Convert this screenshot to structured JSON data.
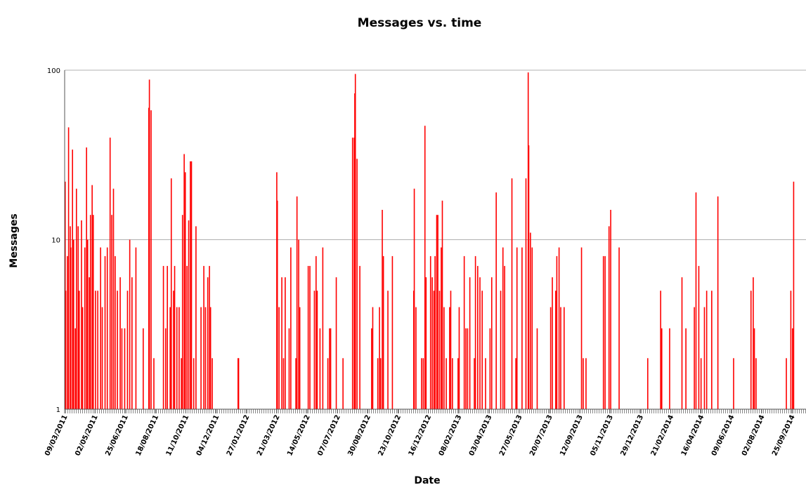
{
  "chart_data": {
    "type": "bar",
    "title": "Messages vs. time",
    "x_label": "Date",
    "y_label": "Messages",
    "color": "#ff0000",
    "y_log": true,
    "grid": true,
    "xlim": [
      "09/03/2011",
      "20/10/2014"
    ],
    "xticks": [
      "09/03/2011",
      "02/05/2011",
      "25/06/2011",
      "18/08/2011",
      "11/10/2011",
      "04/12/2011",
      "27/01/2012",
      "21/03/2012",
      "14/05/2012",
      "07/07/2012",
      "30/08/2012",
      "23/10/2012",
      "16/12/2012",
      "08/02/2013",
      "03/04/2013",
      "27/05/2013",
      "20/07/2013",
      "12/09/2013",
      "05/11/2013",
      "29/12/2013",
      "21/02/2014",
      "16/04/2014",
      "09/06/2014",
      "02/08/2014",
      "25/09/2014"
    ],
    "ylim": [
      1,
      100
    ],
    "yticks": [
      1,
      10,
      100
    ],
    "x": [
      "09/03/2011",
      "10/03/2011",
      "13/03/2011",
      "15/03/2011",
      "18/03/2011",
      "19/03/2011",
      "22/03/2011",
      "24/03/2011",
      "27/03/2011",
      "29/03/2011",
      "01/04/2011",
      "03/04/2011",
      "07/04/2011",
      "09/04/2011",
      "13/04/2011",
      "16/04/2011",
      "18/04/2011",
      "21/04/2011",
      "23/04/2011",
      "26/04/2011",
      "28/04/2011",
      "02/05/2011",
      "06/05/2011",
      "11/05/2011",
      "14/05/2011",
      "19/05/2011",
      "23/05/2011",
      "28/05/2011",
      "31/05/2011",
      "03/06/2011",
      "06/06/2011",
      "10/06/2011",
      "15/06/2011",
      "18/06/2011",
      "23/06/2011",
      "28/06/2011",
      "02/07/2011",
      "06/07/2011",
      "13/07/2011",
      "26/07/2011",
      "05/08/2011",
      "06/08/2011",
      "09/08/2011",
      "14/08/2011",
      "31/08/2011",
      "04/09/2011",
      "07/09/2011",
      "12/09/2011",
      "14/09/2011",
      "18/09/2011",
      "20/09/2011",
      "24/09/2011",
      "28/09/2011",
      "02/10/2011",
      "04/10/2011",
      "07/10/2011",
      "09/10/2011",
      "12/10/2011",
      "15/10/2011",
      "18/10/2011",
      "20/10/2011",
      "24/10/2011",
      "28/10/2011",
      "06/11/2011",
      "11/11/2011",
      "14/11/2011",
      "18/11/2011",
      "21/11/2011",
      "23/11/2011",
      "26/11/2011",
      "11/01/2012",
      "12/01/2012",
      "20/03/2012",
      "21/03/2012",
      "24/03/2012",
      "29/03/2012",
      "01/04/2012",
      "04/04/2012",
      "11/04/2012",
      "14/04/2012",
      "23/04/2012",
      "25/04/2012",
      "28/04/2012",
      "30/04/2012",
      "15/05/2012",
      "18/05/2012",
      "26/05/2012",
      "29/05/2012",
      "31/05/2012",
      "05/06/2012",
      "10/06/2012",
      "19/06/2012",
      "22/06/2012",
      "24/06/2012",
      "04/07/2012",
      "16/07/2012",
      "02/08/2012",
      "05/08/2012",
      "06/08/2012",
      "07/08/2012",
      "10/08/2012",
      "15/08/2012",
      "05/09/2012",
      "07/09/2012",
      "16/09/2012",
      "19/09/2012",
      "21/09/2012",
      "24/09/2012",
      "26/09/2012",
      "04/10/2012",
      "12/10/2012",
      "19/11/2012",
      "20/11/2012",
      "23/11/2012",
      "03/12/2012",
      "06/12/2012",
      "09/12/2012",
      "11/12/2012",
      "19/12/2012",
      "22/12/2012",
      "25/12/2012",
      "27/12/2012",
      "30/12/2012",
      "01/01/2013",
      "04/01/2013",
      "07/01/2013",
      "09/01/2013",
      "12/01/2013",
      "16/01/2013",
      "22/01/2013",
      "24/01/2013",
      "27/01/2013",
      "06/02/2013",
      "08/02/2013",
      "17/02/2013",
      "20/02/2013",
      "23/02/2013",
      "27/02/2013",
      "07/03/2013",
      "09/03/2013",
      "13/03/2013",
      "17/03/2013",
      "21/03/2013",
      "27/03/2013",
      "04/04/2013",
      "07/04/2013",
      "15/04/2013",
      "23/04/2013",
      "27/04/2013",
      "30/04/2013",
      "13/05/2013",
      "20/05/2013",
      "22/05/2013",
      "31/05/2013",
      "07/06/2013",
      "11/06/2013",
      "12/06/2013",
      "15/06/2013",
      "18/06/2013",
      "27/06/2013",
      "21/07/2013",
      "24/07/2013",
      "30/07/2013",
      "01/08/2013",
      "05/08/2013",
      "08/08/2013",
      "14/08/2013",
      "14/09/2013",
      "17/09/2013",
      "22/09/2013",
      "23/10/2013",
      "26/10/2013",
      "02/11/2013",
      "05/11/2013",
      "20/11/2013",
      "10/01/2014",
      "02/02/2014",
      "04/02/2014",
      "18/02/2014",
      "12/03/2014",
      "19/03/2014",
      "03/04/2014",
      "06/04/2014",
      "11/04/2014",
      "15/04/2014",
      "21/04/2014",
      "25/04/2014",
      "04/05/2014",
      "15/05/2014",
      "12/06/2014",
      "13/07/2014",
      "17/07/2014",
      "19/07/2014",
      "22/07/2014",
      "14/09/2014",
      "22/09/2014",
      "25/09/2014",
      "27/09/2014"
    ],
    "values": [
      22,
      5,
      8,
      46,
      12,
      9,
      34,
      10,
      3,
      20,
      12,
      5,
      13,
      4,
      9,
      35,
      10,
      6,
      14,
      21,
      14,
      5,
      5,
      9,
      4,
      8,
      9,
      40,
      14,
      20,
      8,
      5,
      6,
      3,
      3,
      5,
      10,
      6,
      9,
      3,
      60,
      88,
      58,
      2,
      7,
      3,
      7,
      4,
      23,
      5,
      7,
      4,
      4,
      2,
      14,
      32,
      25,
      7,
      13,
      29,
      29,
      2,
      12,
      4,
      7,
      4,
      6,
      7,
      4,
      2,
      2,
      2,
      25,
      17,
      4,
      6,
      2,
      6,
      3,
      9,
      2,
      18,
      10,
      4,
      7,
      7,
      5,
      8,
      5,
      3,
      9,
      2,
      3,
      3,
      6,
      2,
      40,
      40,
      73,
      95,
      30,
      7,
      3,
      4,
      2,
      4,
      2,
      15,
      8,
      5,
      8,
      5,
      20,
      4,
      2,
      2,
      47,
      6,
      8,
      6,
      5,
      8,
      14,
      14,
      5,
      9,
      17,
      4,
      2,
      4,
      5,
      2,
      2,
      4,
      8,
      3,
      3,
      6,
      2,
      8,
      7,
      6,
      5,
      2,
      3,
      6,
      19,
      5,
      9,
      7,
      23,
      2,
      9,
      9,
      23,
      97,
      36,
      11,
      9,
      3,
      4,
      6,
      5,
      8,
      9,
      4,
      4,
      9,
      2,
      2,
      8,
      8,
      12,
      15,
      9,
      2,
      5,
      3,
      3,
      6,
      3,
      4,
      19,
      7,
      2,
      4,
      5,
      5,
      18,
      2,
      5,
      6,
      3,
      2,
      2,
      5,
      3,
      22
    ]
  }
}
